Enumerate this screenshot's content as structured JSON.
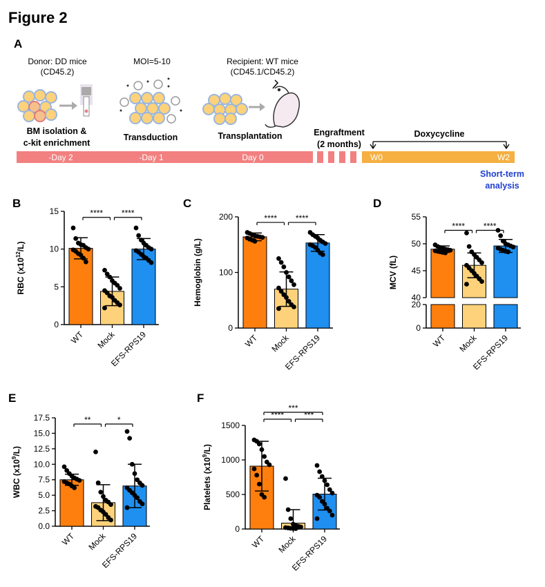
{
  "figure_title": "Figure 2",
  "panelA": {
    "label": "A",
    "donor": [
      "Donor: DD mice",
      "(CD45.2)"
    ],
    "moi": "MOI=5-10",
    "recipient": [
      "Recipient: WT mice",
      "(CD45.1/CD45.2)"
    ],
    "step1": [
      "BM isolation &",
      "c-kit enrichment"
    ],
    "step2": "Transduction",
    "step3": "Transplantation",
    "engraftment": [
      "Engraftment",
      "(2 months)"
    ],
    "doxy": "Doxycycline",
    "days": [
      "-Day 2",
      "-Day 1",
      "Day 0"
    ],
    "w0": "W0",
    "w2": "W2",
    "short_term": [
      "Short-term",
      "analysis"
    ],
    "colors": {
      "timeline_red": "#f28080",
      "timeline_orange": "#f5b041",
      "blue_text": "#1f3fd0"
    }
  },
  "colors": {
    "WT": "#ff7f0e",
    "Mock": "#fdd27a",
    "EFS": "#1f8ff0"
  },
  "chart_data": [
    {
      "id": "B",
      "type": "bar",
      "label": "B",
      "ylabel_pre": "RBC (x10",
      "ylabel_sup": "12",
      "ylabel_post": "/L)",
      "ylim": [
        0,
        15
      ],
      "yticks": [
        0,
        5,
        10,
        15
      ],
      "categories": [
        "WT",
        "Mock",
        "EFS-RPS19"
      ],
      "values": [
        10.1,
        4.4,
        10.0
      ],
      "sd": [
        1.4,
        1.9,
        1.4
      ],
      "points": [
        [
          12.8,
          11.4,
          10.8,
          10.6,
          10.5,
          10.2,
          10.0,
          9.9,
          9.7,
          9.4,
          9.2,
          8.8,
          8.3
        ],
        [
          7.2,
          6.7,
          6.3,
          5.8,
          5.5,
          5.2,
          4.8,
          4.5,
          4.2,
          3.8,
          3.6,
          3.2,
          2.9,
          2.6,
          2.2
        ],
        [
          12.8,
          11.8,
          11.2,
          10.8,
          10.5,
          10.2,
          10.0,
          9.8,
          9.6,
          9.3,
          9.0,
          8.8,
          8.5,
          8.2
        ]
      ],
      "sig": [
        {
          "a": 0,
          "b": 1,
          "text": "****",
          "y": 14.2
        },
        {
          "a": 1,
          "b": 2,
          "text": "****",
          "y": 14.2
        }
      ]
    },
    {
      "id": "C",
      "type": "bar",
      "label": "C",
      "ylabel_pre": "Hemoglobin (g/L)",
      "ylabel_sup": "",
      "ylabel_post": "",
      "ylim": [
        0,
        200
      ],
      "yticks": [
        0,
        100,
        200
      ],
      "categories": [
        "WT",
        "Mock",
        "EFS-RPS19"
      ],
      "values": [
        164,
        70,
        153
      ],
      "sd": [
        7,
        31,
        15
      ],
      "points": [
        [
          172,
          170,
          168,
          166,
          165,
          164,
          163,
          162,
          160,
          158,
          156
        ],
        [
          125,
          118,
          110,
          100,
          92,
          85,
          78,
          72,
          66,
          60,
          55,
          48,
          42,
          38,
          35
        ],
        [
          172,
          168,
          165,
          162,
          158,
          155,
          152,
          150,
          148,
          145,
          140,
          135,
          132
        ]
      ],
      "sig": [
        {
          "a": 0,
          "b": 1,
          "text": "****",
          "y": 190
        },
        {
          "a": 1,
          "b": 2,
          "text": "****",
          "y": 190
        }
      ]
    },
    {
      "id": "D",
      "type": "bar",
      "label": "D",
      "ylabel_pre": "MCV (fL)",
      "ylabel_sup": "",
      "ylabel_post": "",
      "broken": true,
      "upper": {
        "ylim": [
          40,
          55
        ],
        "yticks": [
          40,
          45,
          50,
          55
        ]
      },
      "lower": {
        "ylim": [
          0,
          20
        ],
        "yticks": [
          0,
          20
        ]
      },
      "categories": [
        "WT",
        "Mock",
        "EFS-RPS19"
      ],
      "values": [
        49.0,
        46.0,
        49.6
      ],
      "sd": [
        0.6,
        2.3,
        1.2
      ],
      "points": [
        [
          49.8,
          49.5,
          49.3,
          49.2,
          49.0,
          48.9,
          48.8,
          48.7,
          48.6,
          48.5,
          48.4,
          48.3
        ],
        [
          52.0,
          49.5,
          48.5,
          48.0,
          47.5,
          47.0,
          46.5,
          46.0,
          45.5,
          45.0,
          44.5,
          44.0,
          43.5,
          43.0,
          42.5
        ],
        [
          52.5,
          51.5,
          50.5,
          50.0,
          49.8,
          49.6,
          49.4,
          49.2,
          49.0,
          48.8,
          48.6,
          48.5
        ]
      ],
      "sig": [
        {
          "a": 0,
          "b": 1,
          "text": "****",
          "y": 52.5
        },
        {
          "a": 1,
          "b": 2,
          "text": "****",
          "y": 52.5
        }
      ]
    },
    {
      "id": "E",
      "type": "bar",
      "label": "E",
      "ylabel_pre": "WBC (x10",
      "ylabel_sup": "9",
      "ylabel_post": "/L)",
      "ylim": [
        0,
        17.5
      ],
      "yticks": [
        0.0,
        2.5,
        5.0,
        7.5,
        10.0,
        12.5,
        15.0,
        17.5
      ],
      "tick_decimals": 1,
      "categories": [
        "WT",
        "Mock",
        "EFS-RPS19"
      ],
      "values": [
        7.5,
        3.8,
        6.5
      ],
      "sd": [
        0.9,
        2.9,
        3.5
      ],
      "points": [
        [
          9.6,
          9.0,
          8.5,
          8.1,
          7.8,
          7.6,
          7.4,
          7.2,
          7.0,
          6.8,
          6.5,
          6.2
        ],
        [
          12.0,
          7.0,
          5.5,
          4.8,
          4.2,
          3.9,
          3.5,
          3.2,
          3.0,
          2.6,
          2.3,
          1.9,
          1.4,
          1.0
        ],
        [
          15.3,
          14.2,
          10.0,
          8.5,
          7.5,
          7.0,
          6.6,
          6.2,
          5.8,
          5.4,
          5.0,
          4.6,
          4.0,
          3.6,
          3.0
        ]
      ],
      "sig": [
        {
          "a": 0,
          "b": 1,
          "text": "**",
          "y": 16.5
        },
        {
          "a": 1,
          "b": 2,
          "text": "*",
          "y": 16.5
        }
      ]
    },
    {
      "id": "F",
      "type": "bar",
      "label": "F",
      "ylabel_pre": "Platelets (x10",
      "ylabel_sup": "9",
      "ylabel_post": "/L)",
      "ylim": [
        0,
        1500
      ],
      "yticks": [
        0,
        500,
        1000,
        1500
      ],
      "categories": [
        "WT",
        "Mock",
        "EFS-RPS19"
      ],
      "values": [
        910,
        85,
        505
      ],
      "sd": [
        360,
        195,
        230
      ],
      "points": [
        [
          1290,
          1270,
          1230,
          1150,
          1050,
          970,
          930,
          870,
          780,
          650,
          500,
          460
        ],
        [
          730,
          280,
          150,
          70,
          50,
          40,
          30,
          20,
          15,
          10,
          8,
          5
        ],
        [
          920,
          830,
          760,
          700,
          640,
          570,
          520,
          490,
          460,
          400,
          360,
          300,
          260,
          200,
          150
        ]
      ],
      "sig": [
        {
          "a": 0,
          "b": 1,
          "text": "****",
          "y": 1590
        },
        {
          "a": 1,
          "b": 2,
          "text": "***",
          "y": 1590
        },
        {
          "a": 0,
          "b": 2,
          "text": "***",
          "y": 1690
        }
      ]
    }
  ]
}
